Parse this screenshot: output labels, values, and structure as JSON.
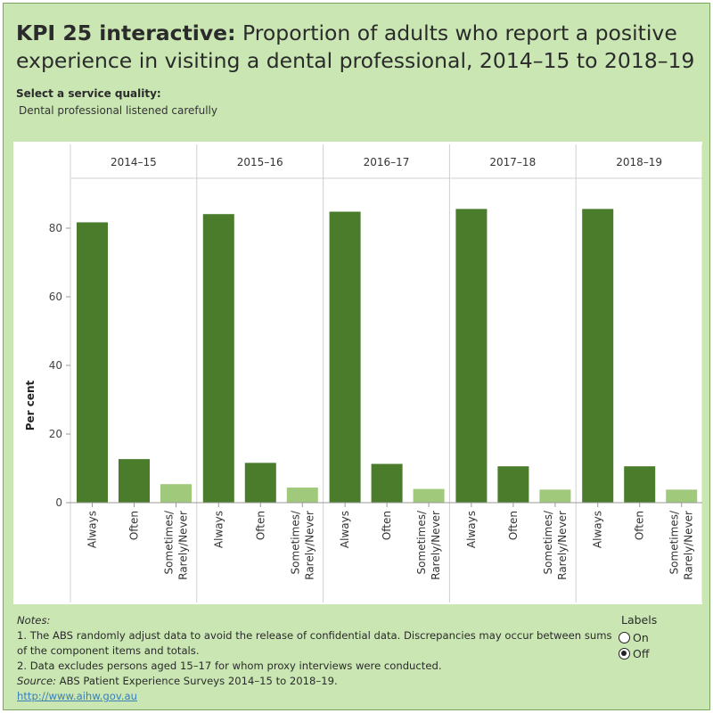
{
  "header": {
    "title_bold": "KPI 25 interactive:",
    "title_rest": "Proportion of adults who report a positive experience in visiting a dental professional, 2014–15 to 2018–19"
  },
  "selector": {
    "label": "Select a service quality:",
    "value": "Dental professional listened carefully"
  },
  "colors": {
    "background": "#c9e6b3",
    "bar_dark": "#4a7c2b",
    "bar_light": "#a0c97b"
  },
  "chart_data": {
    "type": "bar",
    "ylabel": "Per cent",
    "ylim": [
      0,
      100
    ],
    "yticks": [
      0,
      20,
      40,
      60,
      80
    ],
    "panels": [
      "2014–15",
      "2015–16",
      "2016–17",
      "2017–18",
      "2018–19"
    ],
    "categories": [
      "Always",
      "Often",
      "Sometimes/ Rarely/Never"
    ],
    "category_colors": [
      "#4a7c2b",
      "#4a7c2b",
      "#a0c97b"
    ],
    "values": [
      [
        81.7,
        12.7,
        5.4
      ],
      [
        84.1,
        11.6,
        4.4
      ],
      [
        84.8,
        11.3,
        4.0
      ],
      [
        85.6,
        10.6,
        3.8
      ],
      [
        85.6,
        10.6,
        3.8
      ]
    ]
  },
  "notes": {
    "heading": "Notes:",
    "note1": "1. The ABS randomly adjust data to avoid the release of confidential data. Discrepancies may occur between sums of the component items and totals.",
    "note2": "2. Data excludes persons aged 15–17 for whom proxy interviews were conducted.",
    "source_label": "Source:",
    "source_text": "ABS Patient Experience Surveys 2014–15 to 2018–19.",
    "link": "http://www.aihw.gov.au"
  },
  "labels_control": {
    "title": "Labels",
    "options": [
      "On",
      "Off"
    ],
    "selected": "Off"
  }
}
